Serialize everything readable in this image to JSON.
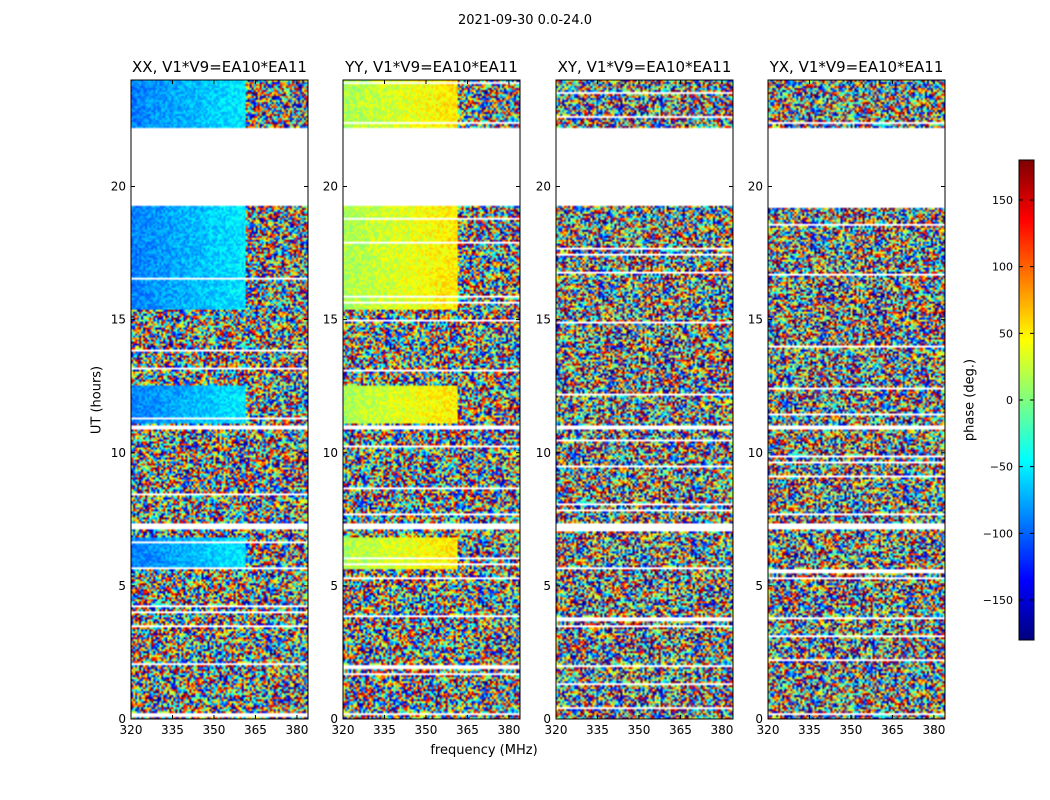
{
  "figure": {
    "suptitle": "2021-09-30 0.0-24.0",
    "xlabel": "frequency (MHz)",
    "ylabel": "UT (hours)",
    "colorbar_label": "phase (deg.)"
  },
  "colors": {
    "colormap": [
      "#00007f",
      "#0000ff",
      "#007fff",
      "#00ffff",
      "#7fff7f",
      "#ffff00",
      "#ff7f00",
      "#ff0000",
      "#7f0000"
    ],
    "axes": "#000000",
    "background": "#ffffff"
  },
  "chart_data": {
    "type": "heatmap",
    "title": "2021-09-30 0.0-24.0",
    "xlabel": "frequency (MHz)",
    "ylabel": "UT (hours)",
    "xlim": [
      320,
      384
    ],
    "ylim": [
      0,
      24
    ],
    "x_ticks": [
      320,
      335,
      350,
      365,
      380
    ],
    "y_ticks": [
      0,
      5,
      10,
      15,
      20
    ],
    "colorbar": {
      "label": "phase (deg.)",
      "range": [
        -180,
        180
      ],
      "ticks": [
        150,
        100,
        50,
        0,
        -50,
        -100,
        -150
      ],
      "tick_labels": [
        "150",
        "100",
        "50",
        "0",
        "−50",
        "−100",
        "−150"
      ]
    },
    "panels": [
      {
        "title": "XX, V1*V9=EA10*EA11",
        "polarization": "XX"
      },
      {
        "title": "YY, V1*V9=EA10*EA11",
        "polarization": "YY"
      },
      {
        "title": "XY, V1*V9=EA10*EA11",
        "polarization": "XY"
      },
      {
        "title": "YX, V1*V9=EA10*EA11",
        "polarization": "YX"
      }
    ],
    "flagged_ut_ranges_hours": [
      [
        19.3,
        22.2
      ],
      [
        10.9,
        11.05
      ],
      [
        7.15,
        7.35
      ]
    ],
    "coherent_ut_ranges_hours": [
      [
        22.2,
        24.0
      ],
      [
        15.4,
        19.3
      ],
      [
        5.6,
        6.8
      ],
      [
        11.1,
        12.5
      ]
    ],
    "coherent_phase_deg": {
      "XX": -90,
      "YY": 15
    }
  }
}
